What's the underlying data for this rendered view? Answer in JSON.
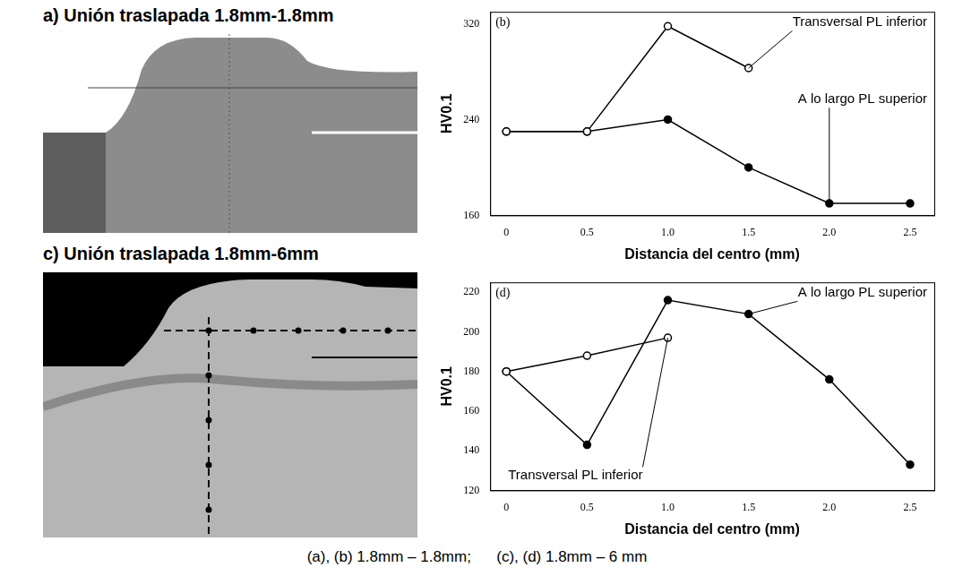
{
  "micrographs": [
    {
      "title": "a) Unión traslapada 1.8mm-1.8mm"
    },
    {
      "title": "c) Unión traslapada 1.8mm-6mm"
    }
  ],
  "caption": "(a), (b) 1.8mm – 1.8mm;      (c), (d) 1.8mm – 6 mm",
  "chart_data": [
    {
      "type": "line",
      "title": "(b)",
      "x_label": "Distancia del centro (mm)",
      "y_label": "HV0.1",
      "x": [
        0,
        0.5,
        1.0,
        1.5,
        2.0,
        2.5
      ],
      "xlim": [
        -0.1,
        2.65
      ],
      "xticks": [
        0,
        0.5,
        {
          "value": 1,
          "label": "1.0"
        },
        1.5,
        {
          "value": 2,
          "label": "2.0"
        },
        2.5
      ],
      "ylim": [
        160,
        330
      ],
      "yticks": [
        160,
        240,
        320
      ],
      "grid": false,
      "series": [
        {
          "name": "Transversal PL inferior",
          "color": "#000000",
          "marker": "open circle",
          "line_style": "solid",
          "values": [
            230,
            230,
            318,
            283,
            null,
            null
          ]
        },
        {
          "name": "A lo largo PL superior",
          "color": "#000000",
          "marker": "filled circle",
          "line_style": "solid",
          "values": [
            230,
            230,
            240,
            200,
            170,
            170
          ]
        }
      ]
    },
    {
      "type": "line",
      "title": "(d)",
      "x_label": "Distancia del centro (mm)",
      "y_label": "HV0.1",
      "x": [
        0,
        0.5,
        1.0,
        1.5,
        2.0,
        2.5
      ],
      "xlim": [
        -0.1,
        2.65
      ],
      "xticks": [
        0,
        0.5,
        {
          "value": 1,
          "label": "1.0"
        },
        1.5,
        {
          "value": 2,
          "label": "2.0"
        },
        2.5
      ],
      "ylim": [
        120,
        225
      ],
      "yticks": [
        120,
        140,
        160,
        180,
        200,
        220
      ],
      "grid": false,
      "series": [
        {
          "name": "Transversal PL inferior",
          "color": "#000000",
          "marker": "open circle",
          "line_style": "solid",
          "values": [
            180,
            188,
            197,
            null,
            null,
            null
          ]
        },
        {
          "name": "A lo largo PL superior",
          "color": "#000000",
          "marker": "filled circle",
          "line_style": "solid",
          "values": [
            180,
            143,
            216,
            209,
            176,
            133
          ]
        }
      ]
    }
  ]
}
